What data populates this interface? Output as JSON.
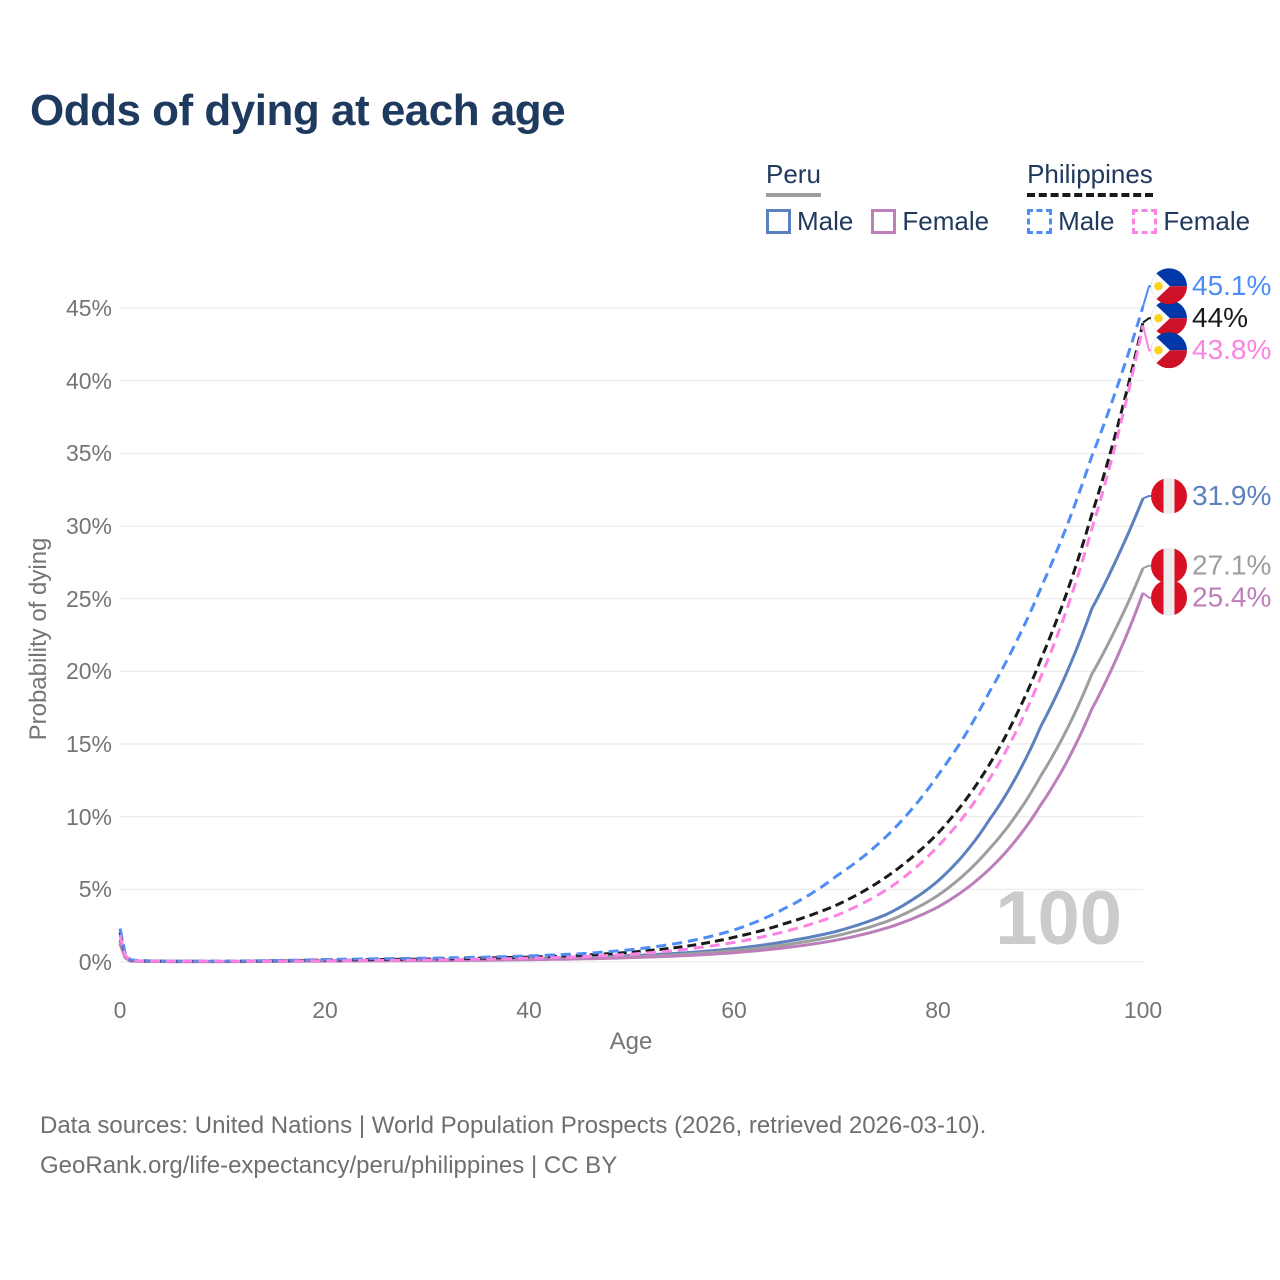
{
  "title": "Odds of dying at each age",
  "legend": {
    "groups": [
      {
        "name": "Peru",
        "line_style": "solid",
        "line_color": "#9e9e9e",
        "items": [
          {
            "label": "Male",
            "color": "#5b82be",
            "style": "solid"
          },
          {
            "label": "Female",
            "color": "#bd7fba",
            "style": "solid"
          }
        ]
      },
      {
        "name": "Philippines",
        "line_style": "dashed",
        "line_color": "#1a1a1a",
        "items": [
          {
            "label": "Male",
            "color": "#4d8df5",
            "style": "dashed"
          },
          {
            "label": "Female",
            "color": "#fc83e2",
            "style": "dashed"
          }
        ]
      }
    ]
  },
  "chart_data": {
    "type": "line",
    "title": "Odds of dying at each age",
    "xlabel": "Age",
    "ylabel": "Probability of dying",
    "x_ticks": [
      "0",
      "20",
      "40",
      "60",
      "80",
      "100"
    ],
    "y_ticks": [
      "0%",
      "5%",
      "10%",
      "15%",
      "20%",
      "25%",
      "30%",
      "35%",
      "40%",
      "45%"
    ],
    "xlim": [
      0,
      100
    ],
    "ylim_percent": [
      0,
      47
    ],
    "grid": "horizontal",
    "legend_position": "top-right",
    "unit": "percent probability of dying at each age",
    "watermark": "100",
    "ages": [
      0,
      1,
      2,
      5,
      10,
      15,
      20,
      25,
      30,
      35,
      40,
      45,
      50,
      55,
      60,
      65,
      70,
      75,
      80,
      85,
      90,
      95,
      100
    ],
    "series": [
      {
        "name": "Peru Male",
        "country": "Peru",
        "sex": "Male",
        "color": "#5b82be",
        "dash": null,
        "end_value": 31.9,
        "end_label": "31.9%",
        "values": [
          1.55,
          0.09,
          0.05,
          0.035,
          0.035,
          0.06,
          0.1,
          0.13,
          0.15,
          0.18,
          0.23,
          0.31,
          0.44,
          0.62,
          0.92,
          1.4,
          2.1,
          3.3,
          5.6,
          9.8,
          16.2,
          24.3,
          31.9
        ]
      },
      {
        "name": "Peru Both sexes",
        "country": "Peru",
        "sex": "Both sexes",
        "color": "#9e9e9e",
        "dash": null,
        "end_value": 27.1,
        "end_label": "27.1%",
        "values": [
          1.4,
          0.08,
          0.045,
          0.03,
          0.03,
          0.05,
          0.08,
          0.1,
          0.12,
          0.15,
          0.19,
          0.26,
          0.36,
          0.52,
          0.78,
          1.18,
          1.8,
          2.8,
          4.6,
          7.8,
          12.8,
          19.8,
          27.1
        ]
      },
      {
        "name": "Peru Female",
        "country": "Peru",
        "sex": "Female",
        "color": "#bd7fba",
        "dash": null,
        "end_value": 25.4,
        "end_label": "25.4%",
        "values": [
          1.25,
          0.07,
          0.04,
          0.028,
          0.026,
          0.04,
          0.06,
          0.075,
          0.09,
          0.12,
          0.16,
          0.21,
          0.3,
          0.43,
          0.64,
          0.98,
          1.5,
          2.35,
          3.8,
          6.4,
          10.8,
          17.4,
          25.4
        ]
      },
      {
        "name": "Philippines Both sexes",
        "country": "Philippines",
        "sex": "Both sexes",
        "color": "#1a1a1a",
        "dash": [
          9,
          5
        ],
        "end_value": 44,
        "end_label": "44%",
        "values": [
          2.05,
          0.14,
          0.08,
          0.055,
          0.05,
          0.08,
          0.13,
          0.17,
          0.2,
          0.26,
          0.34,
          0.46,
          0.68,
          1.05,
          1.7,
          2.65,
          3.9,
          5.9,
          8.9,
          13.6,
          20.8,
          30.8,
          44.0
        ]
      },
      {
        "name": "Philippines Male",
        "country": "Philippines",
        "sex": "Male",
        "color": "#4d8df5",
        "dash": [
          10,
          6
        ],
        "end_value": 45.1,
        "end_label": "45.1%",
        "values": [
          2.3,
          0.16,
          0.09,
          0.06,
          0.06,
          0.1,
          0.17,
          0.22,
          0.26,
          0.32,
          0.42,
          0.57,
          0.85,
          1.35,
          2.2,
          3.7,
          5.9,
          8.7,
          12.9,
          18.6,
          25.7,
          34.8,
          45.1
        ]
      },
      {
        "name": "Philippines Female",
        "country": "Philippines",
        "sex": "Female",
        "color": "#fc83e2",
        "dash": [
          10,
          6
        ],
        "end_value": 43.8,
        "end_label": "43.8%",
        "values": [
          1.85,
          0.12,
          0.07,
          0.05,
          0.045,
          0.06,
          0.09,
          0.11,
          0.14,
          0.19,
          0.26,
          0.36,
          0.54,
          0.85,
          1.35,
          2.1,
          3.2,
          5.0,
          8.0,
          12.6,
          19.6,
          29.8,
          43.8
        ]
      }
    ]
  },
  "flags": {
    "philippines": {
      "blue": "#0038a8",
      "red": "#ce1126",
      "yellow": "#fcd116",
      "white": "#fafafa"
    },
    "peru": {
      "red": "#d91023",
      "white": "#ededed"
    }
  },
  "footer": {
    "line1": "Data sources: United Nations | World Population Prospects (2026, retrieved 2026-03-10).",
    "line2": "GeoRank.org/life-expectancy/peru/philippines | CC BY"
  }
}
